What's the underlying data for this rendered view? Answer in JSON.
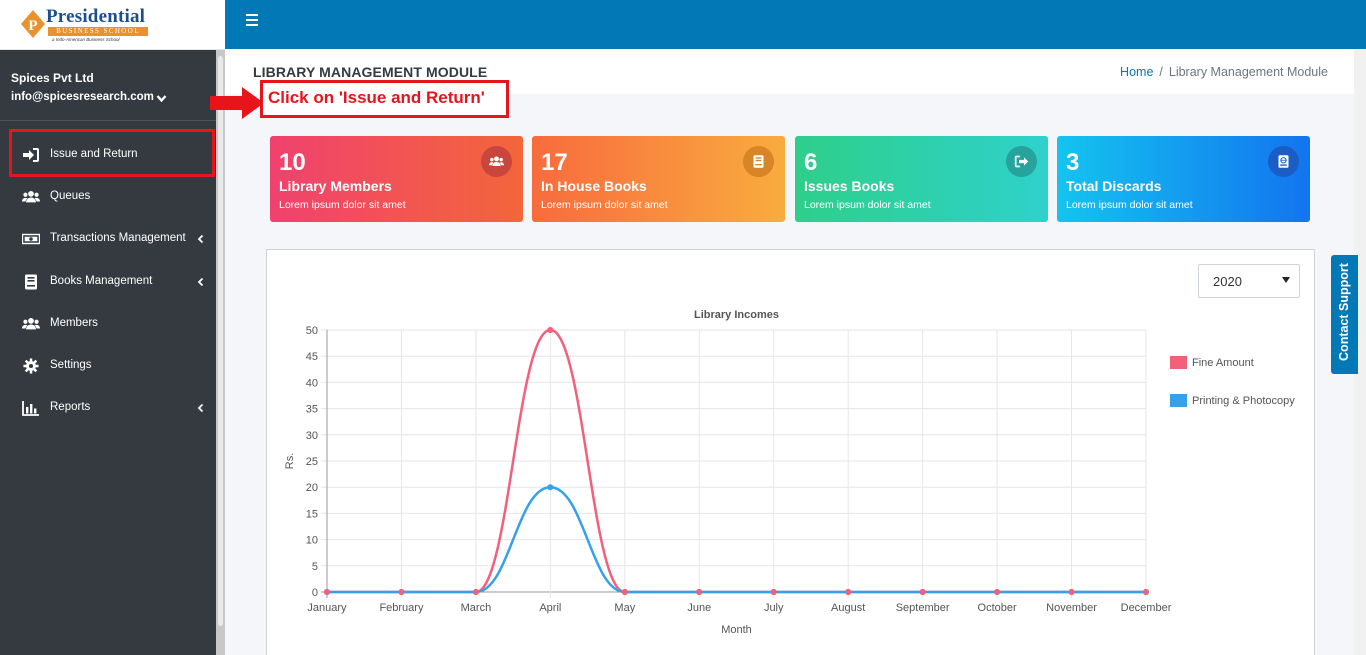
{
  "brand": {
    "name": "Presidential",
    "subtitle": "BUSINESS SCHOOL",
    "tagline": "a Indo-American Business School"
  },
  "user": {
    "company": "Spices Pvt Ltd",
    "email": "info@spicesresearch.com"
  },
  "sidebar": {
    "items": [
      {
        "label": "Issue and Return",
        "icon": "sign-in-icon",
        "has_children": false
      },
      {
        "label": "Queues",
        "icon": "users-icon",
        "has_children": false
      },
      {
        "label": "Transactions Management",
        "icon": "money-icon",
        "has_children": true
      },
      {
        "label": "Books Management",
        "icon": "book-icon",
        "has_children": true
      },
      {
        "label": "Members",
        "icon": "users-icon",
        "has_children": false
      },
      {
        "label": "Settings",
        "icon": "gear-icon",
        "has_children": false
      },
      {
        "label": "Reports",
        "icon": "bar-chart-icon",
        "has_children": true
      }
    ]
  },
  "header": {
    "page_title": "LIBRARY MANAGEMENT MODULE",
    "breadcrumb": [
      "Home",
      "Library Management Module"
    ]
  },
  "annotation": {
    "text": "Click on 'Issue and Return'",
    "color": "#e8141b"
  },
  "info_boxes": [
    {
      "count": "10",
      "title": "Library Members",
      "subtitle": "Lorem ipsum dolor sit amet",
      "icon": "users-icon"
    },
    {
      "count": "17",
      "title": "In House Books",
      "subtitle": "Lorem ipsum dolor sit amet",
      "icon": "book-icon"
    },
    {
      "count": "6",
      "title": "Issues Books",
      "subtitle": "Lorem ipsum dolor sit amet",
      "icon": "sign-out-icon"
    },
    {
      "count": "3",
      "title": "Total Discards",
      "subtitle": "Lorem ipsum dolor sit amet",
      "icon": "globe-book-icon"
    }
  ],
  "year_select": {
    "value": "2020"
  },
  "contact_support": "Contact Support",
  "colors": {
    "topbar": "#0279b6",
    "sidebar": "#343a40",
    "fine": "#f2607c",
    "printing": "#36a0e8"
  },
  "chart_data": {
    "type": "line",
    "title": "Library Incomes",
    "xlabel": "Month",
    "ylabel": "Rs.",
    "ylim": [
      0,
      50
    ],
    "y_ticks": [
      0,
      5,
      10,
      15,
      20,
      25,
      30,
      35,
      40,
      45,
      50
    ],
    "categories": [
      "January",
      "February",
      "March",
      "April",
      "May",
      "June",
      "July",
      "August",
      "September",
      "October",
      "November",
      "December"
    ],
    "series": [
      {
        "name": "Fine Amount",
        "color": "#f2607c",
        "values": [
          0,
          0,
          0,
          50,
          0,
          0,
          0,
          0,
          0,
          0,
          0,
          0
        ]
      },
      {
        "name": "Printing & Photocopy",
        "color": "#36a0e8",
        "values": [
          0,
          0,
          0,
          20,
          0,
          0,
          0,
          0,
          0,
          0,
          0,
          0
        ]
      }
    ],
    "grid": true,
    "legend_position": "right"
  }
}
